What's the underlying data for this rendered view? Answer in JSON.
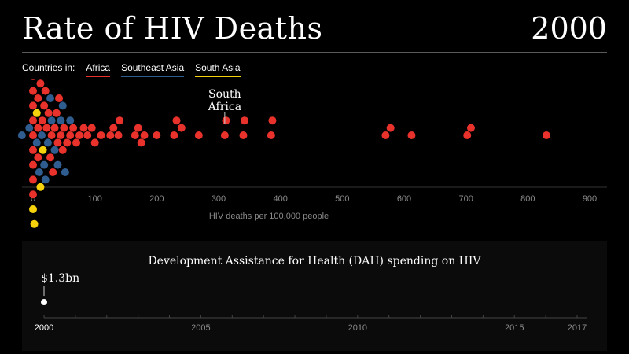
{
  "header": {
    "title": "Rate of HIV Deaths",
    "year": "2000"
  },
  "legend": {
    "lead": "Countries in:",
    "items": [
      {
        "label": "Africa",
        "color": "#e8322b"
      },
      {
        "label": "Southeast Asia",
        "color": "#2f5d8f"
      },
      {
        "label": "South Asia",
        "color": "#f5d20c"
      }
    ]
  },
  "chart_data": [
    {
      "type": "scatter",
      "subtype": "beeswarm",
      "xlabel": "HIV deaths per 100,000 people",
      "xlim": [
        0,
        900
      ],
      "xticks": [
        "0",
        "100",
        "200",
        "300",
        "400",
        "500",
        "600",
        "700",
        "800",
        "900"
      ],
      "annotation": {
        "text": [
          "South",
          "Africa"
        ],
        "x": 310
      },
      "series": [
        {
          "name": "Africa",
          "color": "#e8322b",
          "values": [
            0,
            0,
            0,
            0,
            0,
            0,
            0,
            0,
            0,
            0,
            8,
            8,
            8,
            12,
            15,
            18,
            20,
            22,
            25,
            28,
            30,
            32,
            35,
            38,
            40,
            42,
            45,
            48,
            50,
            55,
            60,
            65,
            70,
            75,
            82,
            88,
            95,
            100,
            110,
            125,
            130,
            138,
            140,
            165,
            170,
            175,
            180,
            200,
            228,
            232,
            240,
            268,
            310,
            312,
            340,
            342,
            385,
            387,
            570,
            578,
            612,
            702,
            708,
            830
          ]
        },
        {
          "name": "Southeast Asia",
          "color": "#2f5d8f",
          "values": [
            -18,
            -6,
            4,
            6,
            10,
            14,
            18,
            20,
            24,
            28,
            30,
            35,
            40,
            45,
            48,
            52,
            60
          ]
        },
        {
          "name": "South Asia",
          "color": "#f5d20c",
          "values": [
            0,
            0,
            2,
            6,
            12,
            16
          ]
        }
      ]
    },
    {
      "type": "line",
      "title": "Development Assistance for Health (DAH) spending on HIV",
      "xlim": [
        2000,
        2017
      ],
      "xticks": [
        "2000",
        "2005",
        "2010",
        "2015",
        "2017"
      ],
      "series": [
        {
          "name": "",
          "x": [
            2000
          ],
          "values": [
            1.3
          ]
        }
      ],
      "point_label": "$1.3bn"
    }
  ]
}
